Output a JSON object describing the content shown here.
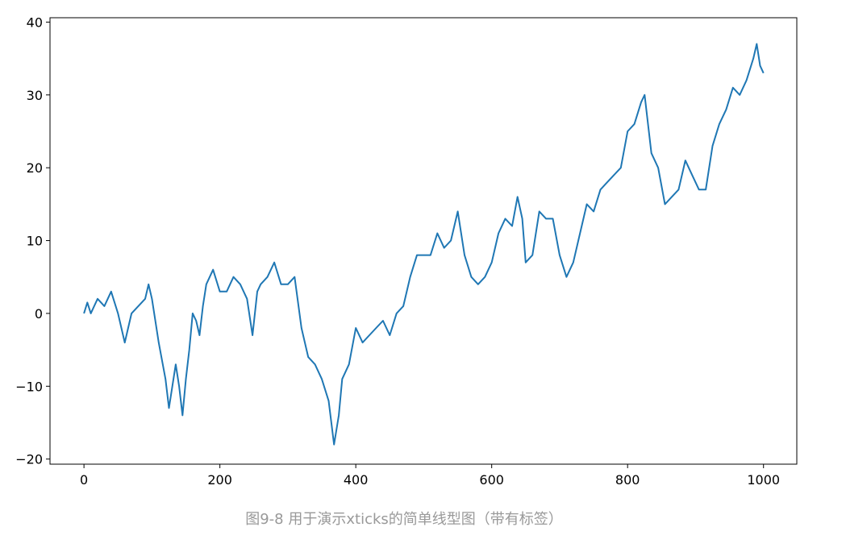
{
  "chart_data": {
    "type": "line",
    "caption": "图9-8 用于演示xticks的简单线型图（带有标签）",
    "x": [
      0,
      5,
      10,
      20,
      30,
      40,
      50,
      60,
      70,
      80,
      90,
      95,
      100,
      110,
      120,
      125,
      130,
      135,
      140,
      145,
      150,
      155,
      160,
      165,
      170,
      175,
      180,
      190,
      200,
      210,
      220,
      230,
      240,
      248,
      255,
      260,
      270,
      280,
      290,
      300,
      310,
      320,
      330,
      340,
      350,
      360,
      368,
      375,
      380,
      390,
      400,
      410,
      420,
      430,
      440,
      450,
      460,
      470,
      480,
      490,
      500,
      510,
      520,
      530,
      540,
      550,
      560,
      570,
      580,
      590,
      600,
      610,
      620,
      630,
      638,
      645,
      650,
      660,
      670,
      680,
      690,
      700,
      710,
      720,
      730,
      740,
      750,
      760,
      770,
      780,
      790,
      800,
      810,
      820,
      825,
      835,
      845,
      855,
      865,
      875,
      885,
      895,
      905,
      915,
      925,
      935,
      945,
      955,
      965,
      975,
      985,
      990,
      995,
      1000
    ],
    "series": [
      {
        "color": "#1f77b4",
        "values": [
          0,
          1.5,
          0,
          2,
          1,
          3,
          0,
          -4,
          0,
          1,
          2,
          4,
          2,
          -4,
          -9,
          -13,
          -10,
          -7,
          -10,
          -14,
          -9,
          -5,
          0,
          -1,
          -3,
          1,
          4,
          6,
          3,
          3,
          5,
          4,
          2,
          -3,
          3,
          4,
          5,
          7,
          4,
          4,
          5,
          -2,
          -6,
          -7,
          -9,
          -12,
          -18,
          -14,
          -9,
          -7,
          -2,
          -4,
          -3,
          -2,
          -1,
          -3,
          0,
          1,
          5,
          8,
          8,
          8,
          11,
          9,
          10,
          14,
          8,
          5,
          4,
          5,
          7,
          11,
          13,
          12,
          16,
          13,
          7,
          8,
          14,
          13,
          13,
          8,
          5,
          7,
          11,
          15,
          14,
          17,
          18,
          19,
          20,
          25,
          26,
          29,
          30,
          22,
          20,
          15,
          16,
          17,
          21,
          19,
          17,
          17,
          23,
          26,
          28,
          31,
          30,
          32,
          35,
          37,
          34,
          33
        ]
      }
    ],
    "xlim": [
      -50,
      1049
    ],
    "ylim": [
      -20.7,
      40.6
    ],
    "xticks": [
      0,
      200,
      400,
      600,
      800,
      1000
    ],
    "yticks": [
      {
        "value": -20,
        "label": "−20"
      },
      {
        "value": -10,
        "label": "−10"
      },
      0,
      10,
      20,
      30,
      40
    ]
  }
}
